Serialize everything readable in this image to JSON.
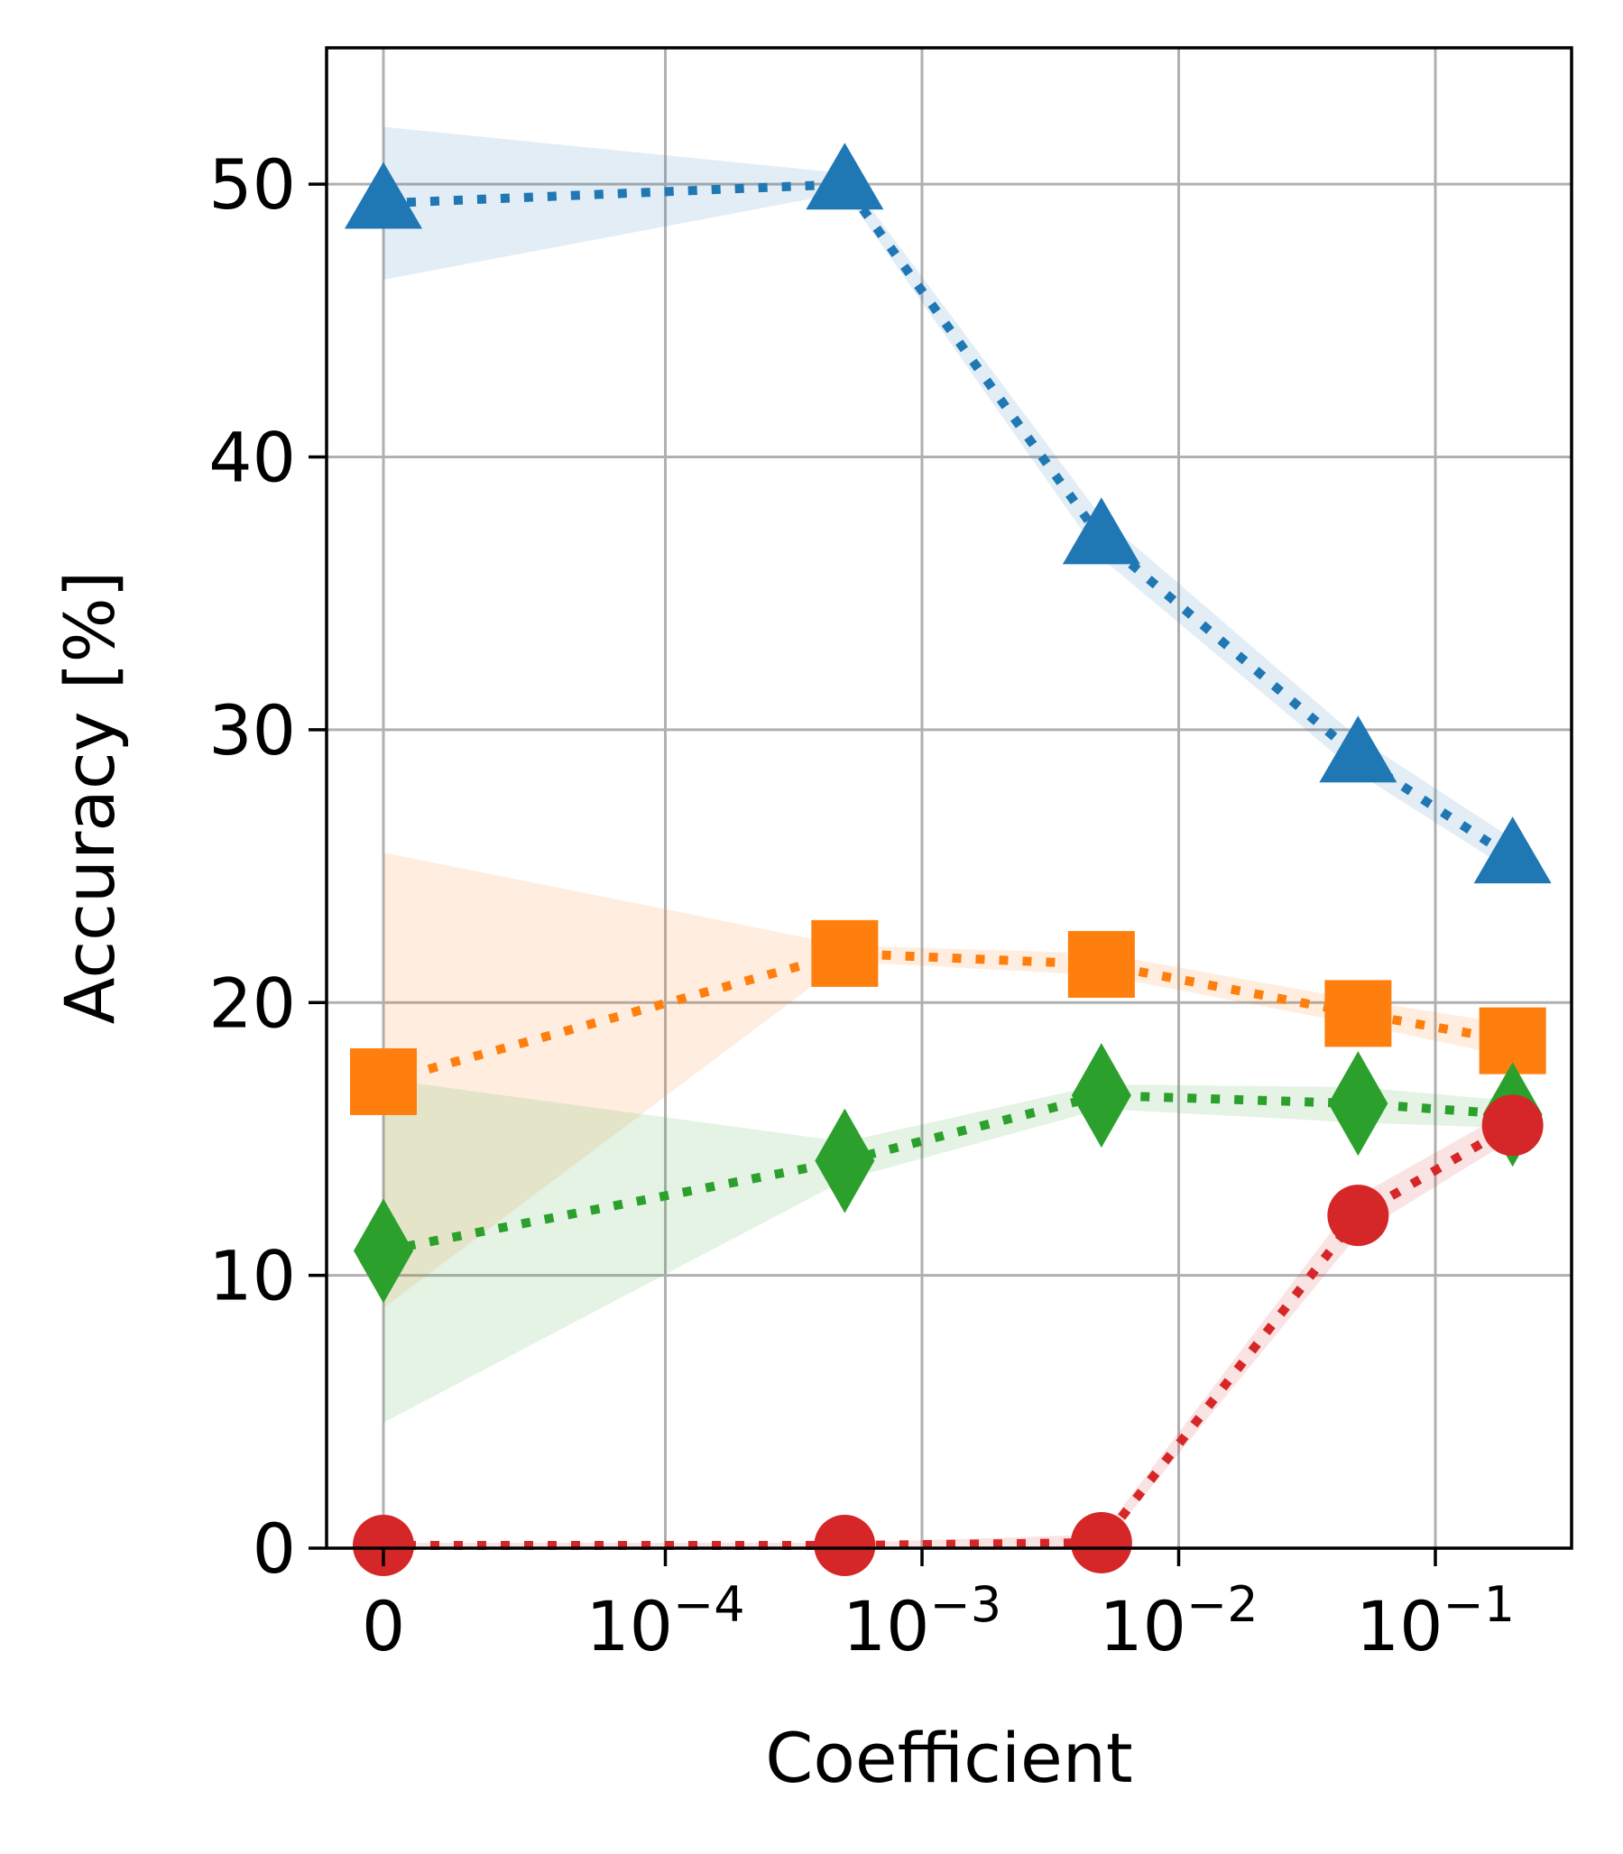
{
  "chart_data": {
    "type": "line",
    "xlabel": "Coefficient",
    "ylabel": "Accuracy [%]",
    "x_scale": "symlog",
    "ylim": [
      0,
      55
    ],
    "grid": true,
    "x_ticks": [
      {
        "value": 0,
        "base": "0",
        "exp": ""
      },
      {
        "value": 0.0001,
        "base": "10",
        "exp": "−4"
      },
      {
        "value": 0.001,
        "base": "10",
        "exp": "−3"
      },
      {
        "value": 0.01,
        "base": "10",
        "exp": "−2"
      },
      {
        "value": 0.1,
        "base": "10",
        "exp": "−1"
      }
    ],
    "y_ticks": [
      {
        "value": 0,
        "label": "0"
      },
      {
        "value": 10,
        "label": "10"
      },
      {
        "value": 20,
        "label": "20"
      },
      {
        "value": 30,
        "label": "30"
      },
      {
        "value": 40,
        "label": "40"
      },
      {
        "value": 50,
        "label": "50"
      }
    ],
    "x": [
      0,
      0.0005,
      0.005,
      0.05,
      0.2
    ],
    "series": [
      {
        "color": "#1f77b4",
        "marker": "triangle",
        "values": [
          49.3,
          50.0,
          37.0,
          29.0,
          25.3
        ],
        "lower": [
          46.5,
          49.7,
          36.3,
          28.4,
          24.8
        ],
        "upper": [
          52.1,
          50.4,
          37.8,
          29.7,
          26.0
        ]
      },
      {
        "color": "#ff7f0e",
        "marker": "square",
        "values": [
          17.1,
          21.8,
          21.4,
          19.6,
          18.6
        ],
        "lower": [
          8.8,
          21.5,
          21.0,
          19.2,
          18.0
        ],
        "upper": [
          25.5,
          22.1,
          21.8,
          20.1,
          19.2
        ]
      },
      {
        "color": "#2ca02c",
        "marker": "diamond",
        "values": [
          10.9,
          14.2,
          16.6,
          16.3,
          15.9
        ],
        "lower": [
          4.6,
          13.5,
          16.1,
          15.6,
          15.4
        ],
        "upper": [
          17.2,
          14.9,
          17.0,
          16.9,
          16.4
        ]
      },
      {
        "color": "#d62728",
        "marker": "circle",
        "values": [
          0.1,
          0.1,
          0.2,
          12.2,
          15.5
        ],
        "lower": [
          0.0,
          0.0,
          0.0,
          11.5,
          15.0
        ],
        "upper": [
          0.2,
          0.2,
          0.5,
          12.9,
          16.1
        ]
      }
    ]
  }
}
